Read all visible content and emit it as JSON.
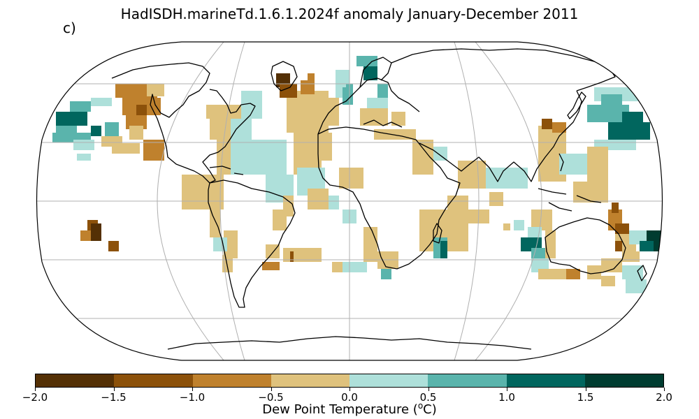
{
  "figure": {
    "title": "HadISDH.marineTd.1.6.1.2024f anomaly January-December 2011",
    "panel_label": "c)"
  },
  "colors": {
    "bins": [
      "#543005",
      "#8c510a",
      "#bf812d",
      "#dfc27d",
      "#f6e8c3",
      "#c7eae5",
      "#80cdc1",
      "#35978f",
      "#01665e",
      "#003c30"
    ],
    "land_outline": "#000000",
    "graticule": "#b0b0b0"
  },
  "colorbar": {
    "label": "Dew Point Temperature (ᴼC)",
    "label_text": "Dew Point Temperature (",
    "label_super": "o",
    "label_tail": "C)",
    "ticks": [
      "−2.0",
      "−1.5",
      "−1.0",
      "−0.5",
      "0.0",
      "0.5",
      "1.0",
      "1.5",
      "2.0"
    ],
    "bins": [
      {
        "min": -2.0,
        "max": -1.5,
        "color": "#543005"
      },
      {
        "min": -1.5,
        "max": -1.0,
        "color": "#8c510a"
      },
      {
        "min": -1.0,
        "max": -0.5,
        "color": "#bf812d"
      },
      {
        "min": -0.5,
        "max": 0.0,
        "color": "#dfc27d"
      },
      {
        "min": 0.0,
        "max": 0.5,
        "color": "#aee0da"
      },
      {
        "min": 0.5,
        "max": 1.0,
        "color": "#5ab4ac"
      },
      {
        "min": 1.0,
        "max": 1.5,
        "color": "#01665e"
      },
      {
        "min": 1.5,
        "max": 2.0,
        "color": "#003c30"
      }
    ]
  }
}
